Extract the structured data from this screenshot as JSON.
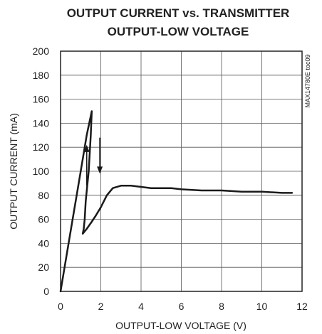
{
  "chart_data": {
    "type": "line",
    "title_line1": "OUTPUT CURRENT vs. TRANSMITTER",
    "title_line2": "OUTPUT-LOW VOLTAGE",
    "xlabel": "OUTPUT-LOW VOLTAGE (V)",
    "ylabel": "OUTPUT CURRENT (mA)",
    "figure_code": "MAX14780E toc09",
    "xlim": [
      0,
      12
    ],
    "ylim": [
      0,
      200
    ],
    "x_ticks": [
      0,
      2,
      4,
      6,
      8,
      10,
      12
    ],
    "y_ticks": [
      0,
      20,
      40,
      60,
      80,
      100,
      120,
      140,
      160,
      180,
      200
    ],
    "grid": true,
    "series": [
      {
        "x": [
          0,
          0.5,
          1.0,
          1.3,
          1.55,
          1.5,
          1.4,
          1.25,
          1.2,
          1.15,
          1.1,
          1.3,
          1.55,
          1.75,
          2.0,
          2.3,
          2.6,
          3.0,
          3.5,
          4.0,
          4.5,
          5.0,
          5.5,
          6.0,
          7.0,
          8.0,
          9.0,
          10.0,
          11.0,
          11.5
        ],
        "y": [
          0,
          50,
          100,
          130,
          150,
          130,
          100,
          75,
          60,
          52,
          48,
          52,
          58,
          63,
          70,
          80,
          86,
          88,
          88,
          87,
          86,
          86,
          86,
          85,
          84,
          84,
          83,
          83,
          82,
          82
        ]
      }
    ],
    "annotations": [
      {
        "type": "arrow",
        "direction": "up",
        "x": 1.3,
        "y_from": 88,
        "y_to": 122
      },
      {
        "type": "arrow",
        "direction": "down",
        "x": 1.95,
        "y_from": 128,
        "y_to": 98
      }
    ]
  }
}
